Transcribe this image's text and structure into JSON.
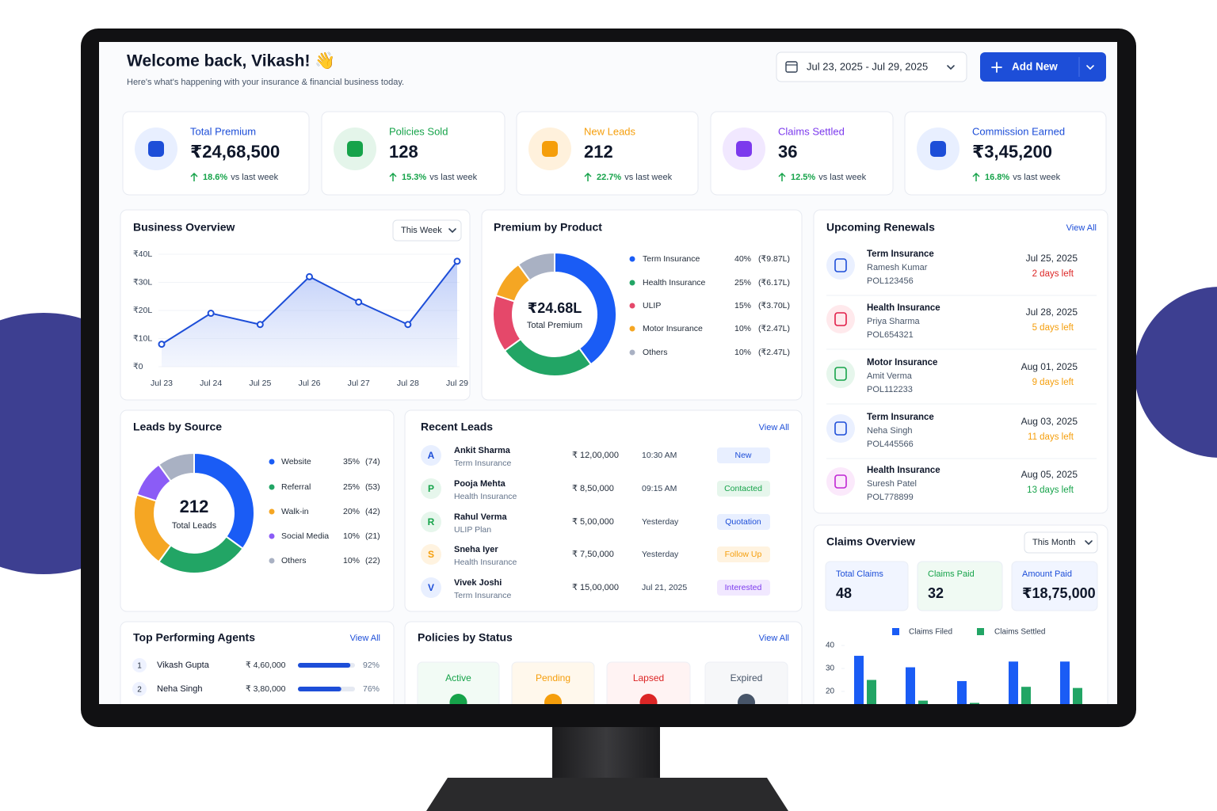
{
  "header": {
    "title": "Welcome back, Vikash! 👋",
    "subtitle": "Here's what's happening with your insurance & financial business today.",
    "date_range": "Jul 23, 2025 - Jul 29, 2025",
    "add_button": "Add New"
  },
  "kpis": [
    {
      "label": "Total Premium",
      "value": "₹24,68,500",
      "change": "18.6%",
      "note": "vs last week",
      "color": "#1d4ed8",
      "tint": "#e8efff"
    },
    {
      "label": "Policies Sold",
      "value": 128,
      "change": "15.3%",
      "note": "vs last week",
      "color": "#16a34a",
      "tint": "#e4f5ea"
    },
    {
      "label": "New Leads",
      "value": 212,
      "change": "22.7%",
      "note": "vs last week",
      "color": "#f59e0b",
      "tint": "#fff1dc"
    },
    {
      "label": "Claims Settled",
      "value": 36,
      "change": "12.5%",
      "note": "vs last week",
      "color": "#7c3aed",
      "tint": "#f1e8ff"
    },
    {
      "label": "Commission Earned",
      "value": "₹3,45,200",
      "change": "16.8%",
      "note": "vs last week",
      "color": "#1d4ed8",
      "tint": "#e8efff"
    }
  ],
  "business_overview": {
    "title": "Business Overview",
    "period": "This Week",
    "chart": {
      "type": "line",
      "categories": [
        "Jul 23",
        "Jul 24",
        "Jul 25",
        "Jul 26",
        "Jul 27",
        "Jul 28",
        "Jul 29"
      ],
      "values": [
        8,
        19,
        15,
        32,
        23,
        15,
        37.5
      ],
      "color": "#1d4ed8",
      "ylim": [
        0,
        40
      ],
      "yticks": [
        {
          "value": 0,
          "label": "₹0"
        },
        {
          "value": 10,
          "label": "₹10L"
        },
        {
          "value": 20,
          "label": "₹20L"
        },
        {
          "value": 30,
          "label": "₹30L"
        },
        {
          "value": 40,
          "label": "₹40L"
        }
      ]
    }
  },
  "premium_by_product": {
    "title": "Premium by Product",
    "center_value": "₹24.68L",
    "center_label": "Total Premium",
    "chart": {
      "type": "donut",
      "categories": [
        "Term Insurance",
        "Health Insurance",
        "ULIP",
        "Motor Insurance",
        "Others"
      ],
      "values": [
        40,
        25,
        15,
        10,
        10
      ],
      "value_labels": [
        "40%",
        "25%",
        "15%",
        "10%",
        "10%"
      ],
      "amount_labels": [
        "(₹9.87L)",
        "(₹6.17L)",
        "(₹3.70L)",
        "(₹2.47L)",
        "(₹2.47L)"
      ],
      "colors": [
        "#1a5cf5",
        "#22a565",
        "#e5486a",
        "#f5a623",
        "#a9b1c3"
      ]
    }
  },
  "upcoming_renewals": {
    "title": "Upcoming Renewals",
    "view_all": "View All",
    "items": [
      {
        "type": "Term Insurance",
        "name": "Ramesh Kumar",
        "policy": "POL123456",
        "date": "Jul 25, 2025",
        "days_left": "2 days left",
        "days_color": "#dc2626",
        "icon_color": "#1d4ed8",
        "icon_tint": "#eaf0ff"
      },
      {
        "type": "Health Insurance",
        "name": "Priya Sharma",
        "policy": "POL654321",
        "date": "Jul 28, 2025",
        "days_left": "5 days left",
        "days_color": "#f59e0b",
        "icon_color": "#e11d48",
        "icon_tint": "#ffe9ec"
      },
      {
        "type": "Motor Insurance",
        "name": "Amit Verma",
        "policy": "POL112233",
        "date": "Aug 01, 2025",
        "days_left": "9 days left",
        "days_color": "#f59e0b",
        "icon_color": "#16a34a",
        "icon_tint": "#e6f6ec"
      },
      {
        "type": "Term Insurance",
        "name": "Neha Singh",
        "policy": "POL445566",
        "date": "Aug 03, 2025",
        "days_left": "11 days left",
        "days_color": "#f59e0b",
        "icon_color": "#1d4ed8",
        "icon_tint": "#eaf0ff"
      },
      {
        "type": "Health Insurance",
        "name": "Suresh Patel",
        "policy": "POL778899",
        "date": "Aug 05, 2025",
        "days_left": "13 days left",
        "days_color": "#16a34a",
        "icon_color": "#c026d3",
        "icon_tint": "#fbe9fb"
      }
    ]
  },
  "leads_by_source": {
    "title": "Leads by Source",
    "center_value": 212,
    "center_label": "Total Leads",
    "chart": {
      "type": "donut",
      "categories": [
        "Website",
        "Referral",
        "Walk-in",
        "Social Media",
        "Others"
      ],
      "values": [
        35,
        25,
        20,
        10,
        10
      ],
      "value_labels": [
        "35%",
        "25%",
        "20%",
        "10%",
        "10%"
      ],
      "count_labels": [
        "(74)",
        "(53)",
        "(42)",
        "(21)",
        "(22)"
      ],
      "colors": [
        "#1a5cf5",
        "#22a565",
        "#f5a623",
        "#8b5cf6",
        "#a9b1c3"
      ]
    }
  },
  "recent_leads": {
    "title": "Recent Leads",
    "view_all": "View All",
    "rows": [
      {
        "initial": "A",
        "name": "Ankit Sharma",
        "product": "Term Insurance",
        "amount": "₹ 12,00,000",
        "time": "10:30 AM",
        "status": "New",
        "status_color": "#1d4ed8",
        "status_tint": "#e8efff",
        "avatar_color": "#1d4ed8",
        "avatar_tint": "#e8efff"
      },
      {
        "initial": "P",
        "name": "Pooja Mehta",
        "product": "Health Insurance",
        "amount": "₹ 8,50,000",
        "time": "09:15 AM",
        "status": "Contacted",
        "status_color": "#16a34a",
        "status_tint": "#e6f6ec",
        "avatar_color": "#16a34a",
        "avatar_tint": "#e6f6ec"
      },
      {
        "initial": "R",
        "name": "Rahul Verma",
        "product": "ULIP Plan",
        "amount": "₹ 5,00,000",
        "time": "Yesterday",
        "status": "Quotation",
        "status_color": "#1d4ed8",
        "status_tint": "#e8efff",
        "avatar_color": "#16a34a",
        "avatar_tint": "#e6f6ec"
      },
      {
        "initial": "S",
        "name": "Sneha Iyer",
        "product": "Health Insurance",
        "amount": "₹ 7,50,000",
        "time": "Yesterday",
        "status": "Follow Up",
        "status_color": "#f59e0b",
        "status_tint": "#fff3e0",
        "avatar_color": "#f59e0b",
        "avatar_tint": "#fff3e0"
      },
      {
        "initial": "V",
        "name": "Vivek Joshi",
        "product": "Term Insurance",
        "amount": "₹ 15,00,000",
        "time": "Jul 21, 2025",
        "status": "Interested",
        "status_color": "#7c3aed",
        "status_tint": "#f1e8ff",
        "avatar_color": "#1d4ed8",
        "avatar_tint": "#e8efff"
      }
    ]
  },
  "claims_overview": {
    "title": "Claims Overview",
    "period": "This Month",
    "stats": [
      {
        "label": "Total Claims",
        "value": 48,
        "color": "#1d4ed8",
        "tint": "#f1f5ff"
      },
      {
        "label": "Claims Paid",
        "value": 32,
        "color": "#16a34a",
        "tint": "#f0faf3"
      },
      {
        "label": "Amount Paid",
        "value": "₹18,75,000",
        "color": "#1d4ed8",
        "tint": "#f1f5ff"
      }
    ],
    "chart": {
      "type": "bar",
      "categories": [
        null,
        null,
        null,
        null,
        null
      ],
      "series": [
        {
          "name": "Claims Filed",
          "color": "#1a5cf5",
          "values": [
            35.5,
            30.5,
            24.5,
            33,
            33
          ]
        },
        {
          "name": "Claims Settled",
          "color": "#22a565",
          "values": [
            25,
            16,
            15,
            22,
            21.5
          ]
        }
      ],
      "ylim": [
        0,
        40
      ],
      "yticks": [
        20,
        30,
        40
      ]
    }
  },
  "top_agents": {
    "title": "Top Performing Agents",
    "view_all": "View All",
    "rows": [
      {
        "rank": 1,
        "name": "Vikash Gupta",
        "amount": "₹ 4,60,000",
        "percent": 92,
        "percent_label": "92%"
      },
      {
        "rank": 2,
        "name": "Neha Singh",
        "amount": "₹ 3,80,000",
        "percent": 76,
        "percent_label": "76%"
      }
    ]
  },
  "policies_by_status": {
    "title": "Policies by Status",
    "view_all": "View All",
    "cards": [
      {
        "label": "Active",
        "color": "#16a34a",
        "tint": "#f2fbf5"
      },
      {
        "label": "Pending",
        "color": "#f59e0b",
        "tint": "#fff8ec"
      },
      {
        "label": "Lapsed",
        "color": "#dc2626",
        "tint": "#fff3f3"
      },
      {
        "label": "Expired",
        "color": "#475569",
        "tint": "#f6f7f9"
      }
    ]
  }
}
